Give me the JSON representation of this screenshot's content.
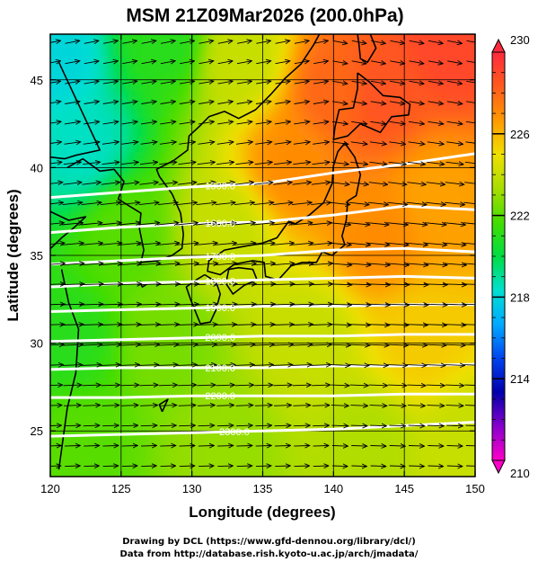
{
  "chart_data": {
    "type": "heatmap",
    "title": "MSM 21Z09Mar2026 (200.0hPa)",
    "xlabel": "Longitude (degrees)",
    "ylabel": "Latitude  (degrees)",
    "xlim": [
      120,
      150
    ],
    "ylim": [
      22.4,
      47.6
    ],
    "x_ticks": [
      120,
      125,
      130,
      135,
      140,
      145,
      150
    ],
    "y_ticks": [
      25,
      30,
      35,
      40,
      45
    ],
    "grid": true,
    "colorbar": {
      "range": [
        210,
        230
      ],
      "ticks": [
        210,
        214,
        218,
        222,
        226,
        230
      ],
      "colors": [
        "#ff00c8",
        "#8800cc",
        "#0000aa",
        "#0044ee",
        "#00aaff",
        "#00e0d0",
        "#00dd44",
        "#44dd00",
        "#aadd00",
        "#f0e000",
        "#ff9900",
        "#ff5a1e",
        "#ff2a3c"
      ]
    },
    "temperature_field": [
      {
        "lon": 120,
        "lat": 46,
        "value": 218
      },
      {
        "lon": 122,
        "lat": 41,
        "value": 218.5
      },
      {
        "lon": 128,
        "lat": 47,
        "value": 221
      },
      {
        "lon": 133,
        "lat": 46,
        "value": 224
      },
      {
        "lon": 137,
        "lat": 40,
        "value": 227
      },
      {
        "lon": 140,
        "lat": 44,
        "value": 228
      },
      {
        "lon": 143,
        "lat": 44,
        "value": 228.5
      },
      {
        "lon": 148,
        "lat": 47,
        "value": 229
      },
      {
        "lon": 143,
        "lat": 36,
        "value": 227
      },
      {
        "lon": 147,
        "lat": 38,
        "value": 226.5
      },
      {
        "lon": 132,
        "lat": 36,
        "value": 224
      },
      {
        "lon": 125,
        "lat": 36,
        "value": 222
      },
      {
        "lon": 121,
        "lat": 30,
        "value": 221
      },
      {
        "lon": 128,
        "lat": 30,
        "value": 222.5
      },
      {
        "lon": 138,
        "lat": 30,
        "value": 224
      },
      {
        "lon": 146,
        "lat": 30,
        "value": 225.5
      },
      {
        "lon": 122,
        "lat": 24,
        "value": 222
      },
      {
        "lon": 132,
        "lat": 24,
        "value": 223
      },
      {
        "lon": 142,
        "lat": 24,
        "value": 223.5
      },
      {
        "lon": 149,
        "lat": 24,
        "value": 224
      }
    ],
    "wind": {
      "base_dir_deg": 0,
      "jet_lat": 33.5,
      "jet_dir_deg": 8
    },
    "contours": [
      {
        "label": "1500.0",
        "y": [
          38.3,
          38.6,
          38.9,
          39.1,
          39.7,
          40.2,
          40.8
        ],
        "label_lon": 132
      },
      {
        "label": "1600.0",
        "y": [
          36.3,
          36.6,
          36.8,
          36.9,
          37.3,
          37.8,
          37.6
        ],
        "label_lon": 132
      },
      {
        "label": "1700.0",
        "y": [
          34.5,
          34.7,
          34.9,
          35.0,
          35.3,
          35.4,
          35.2
        ],
        "label_lon": 132
      },
      {
        "label": "1800.0",
        "y": [
          33.2,
          33.4,
          33.5,
          33.6,
          33.7,
          33.8,
          33.7
        ],
        "label_lon": 132
      },
      {
        "label": "1900.0",
        "y": [
          31.8,
          31.9,
          32.0,
          32.1,
          32.1,
          32.2,
          32.2
        ],
        "label_lon": 132
      },
      {
        "label": "2000.0",
        "y": [
          30.1,
          30.2,
          30.3,
          30.4,
          30.4,
          30.5,
          30.5
        ],
        "label_lon": 132
      },
      {
        "label": "2100.0",
        "y": [
          28.5,
          28.6,
          28.6,
          28.6,
          28.7,
          28.7,
          28.8
        ],
        "label_lon": 132
      },
      {
        "label": "2200.0",
        "y": [
          26.9,
          26.9,
          27.0,
          27.0,
          27.0,
          27.1,
          27.1
        ],
        "label_lon": 132
      },
      {
        "label": "2300.0",
        "y": [
          24.7,
          24.8,
          24.9,
          25.0,
          25.1,
          25.3,
          25.5
        ],
        "label_lon": 133
      }
    ],
    "contour_lons": [
      120,
      125,
      130,
      135,
      140,
      145,
      150
    ],
    "coastlines": [
      [
        [
          120.0,
          37.5
        ],
        [
          121.3,
          37.0
        ],
        [
          122.5,
          37.2
        ],
        [
          121.7,
          36.6
        ],
        [
          120.8,
          36.0
        ],
        [
          119.9,
          35.3
        ]
      ],
      [
        [
          120.6,
          22.8
        ],
        [
          121.2,
          26.3
        ],
        [
          121.8,
          28.3
        ],
        [
          122.0,
          30.8
        ],
        [
          121.3,
          32.3
        ],
        [
          120.8,
          34.2
        ]
      ],
      [
        [
          120.6,
          46.0
        ],
        [
          123.5,
          41.0
        ],
        [
          121.8,
          40.7
        ],
        [
          121.0,
          40.5
        ],
        [
          120.0,
          40.6
        ]
      ],
      [
        [
          121.2,
          40.0
        ],
        [
          122.3,
          40.5
        ],
        [
          123.5,
          39.8
        ],
        [
          124.5,
          39.9
        ],
        [
          125.2,
          39.2
        ],
        [
          124.8,
          38.2
        ],
        [
          125.6,
          37.8
        ],
        [
          126.4,
          37.4
        ],
        [
          126.3,
          36.5
        ],
        [
          126.6,
          35.3
        ],
        [
          126.4,
          34.6
        ],
        [
          127.6,
          34.7
        ],
        [
          128.6,
          35.0
        ],
        [
          129.3,
          35.4
        ],
        [
          129.4,
          36.2
        ],
        [
          129.2,
          37.4
        ],
        [
          128.6,
          38.5
        ],
        [
          127.7,
          39.5
        ],
        [
          127.5,
          39.9
        ],
        [
          128.7,
          40.4
        ],
        [
          129.7,
          41.0
        ],
        [
          129.8,
          41.8
        ],
        [
          130.6,
          42.4
        ],
        [
          131.2,
          42.9
        ],
        [
          132.3,
          43.2
        ],
        [
          133.3,
          42.8
        ],
        [
          134.5,
          43.3
        ],
        [
          135.6,
          44.2
        ],
        [
          136.6,
          45.1
        ],
        [
          137.7,
          45.9
        ],
        [
          138.6,
          47.0
        ],
        [
          139.0,
          47.6
        ]
      ],
      [
        [
          142.6,
          47.6
        ],
        [
          143.0,
          46.8
        ],
        [
          142.4,
          46.0
        ],
        [
          141.9,
          46.2
        ],
        [
          141.8,
          47.0
        ],
        [
          141.7,
          47.6
        ]
      ],
      [
        [
          141.7,
          45.4
        ],
        [
          142.5,
          44.9
        ],
        [
          143.5,
          44.1
        ],
        [
          144.7,
          44.0
        ],
        [
          145.4,
          43.6
        ],
        [
          145.3,
          43.0
        ],
        [
          144.1,
          42.9
        ],
        [
          143.3,
          42.0
        ],
        [
          141.9,
          42.5
        ],
        [
          141.0,
          41.8
        ],
        [
          140.0,
          41.6
        ],
        [
          140.1,
          42.3
        ],
        [
          140.4,
          43.3
        ],
        [
          141.4,
          43.4
        ],
        [
          141.7,
          44.5
        ],
        [
          141.7,
          45.4
        ]
      ],
      [
        [
          140.8,
          41.4
        ],
        [
          141.5,
          40.6
        ],
        [
          141.9,
          39.6
        ],
        [
          141.6,
          38.4
        ],
        [
          141.0,
          38.1
        ],
        [
          140.9,
          37.0
        ],
        [
          140.6,
          36.1
        ],
        [
          140.8,
          35.6
        ],
        [
          139.9,
          35.0
        ],
        [
          139.2,
          35.2
        ],
        [
          138.8,
          34.6
        ],
        [
          137.8,
          34.6
        ],
        [
          137.0,
          34.4
        ],
        [
          136.1,
          33.6
        ],
        [
          135.2,
          33.8
        ],
        [
          135.1,
          34.6
        ],
        [
          134.3,
          34.7
        ],
        [
          133.0,
          34.5
        ],
        [
          132.0,
          33.9
        ],
        [
          131.1,
          34.1
        ],
        [
          131.2,
          34.7
        ],
        [
          132.3,
          35.3
        ],
        [
          133.6,
          35.5
        ],
        [
          135.0,
          35.7
        ],
        [
          136.0,
          36.0
        ],
        [
          136.8,
          36.9
        ],
        [
          137.3,
          36.8
        ],
        [
          138.3,
          37.3
        ],
        [
          139.3,
          38.0
        ],
        [
          139.9,
          39.1
        ],
        [
          140.0,
          40.1
        ],
        [
          140.3,
          40.9
        ],
        [
          140.8,
          41.4
        ]
      ],
      [
        [
          132.6,
          34.2
        ],
        [
          133.3,
          34.3
        ],
        [
          134.3,
          34.2
        ],
        [
          134.6,
          33.6
        ],
        [
          133.7,
          33.3
        ],
        [
          132.9,
          32.8
        ],
        [
          132.4,
          33.4
        ],
        [
          132.6,
          34.2
        ]
      ],
      [
        [
          130.9,
          33.9
        ],
        [
          131.7,
          33.5
        ],
        [
          132.0,
          32.8
        ],
        [
          131.7,
          31.9
        ],
        [
          131.3,
          31.2
        ],
        [
          130.6,
          31.1
        ],
        [
          130.3,
          31.7
        ],
        [
          129.9,
          32.5
        ],
        [
          129.6,
          33.2
        ],
        [
          130.3,
          33.6
        ],
        [
          130.9,
          33.9
        ]
      ],
      [
        [
          127.9,
          26.1
        ],
        [
          128.3,
          26.8
        ],
        [
          127.7,
          26.5
        ],
        [
          127.9,
          26.1
        ]
      ],
      [
        [
          126.3,
          33.5
        ],
        [
          126.9,
          33.4
        ],
        [
          126.5,
          33.2
        ],
        [
          126.3,
          33.5
        ]
      ]
    ]
  },
  "footer": {
    "credit_line1": "Drawing by DCL (https://www.gfd-dennou.org/library/dcl/)",
    "credit_line2": "Data from http://database.rish.kyoto-u.ac.jp/arch/jmadata/"
  }
}
